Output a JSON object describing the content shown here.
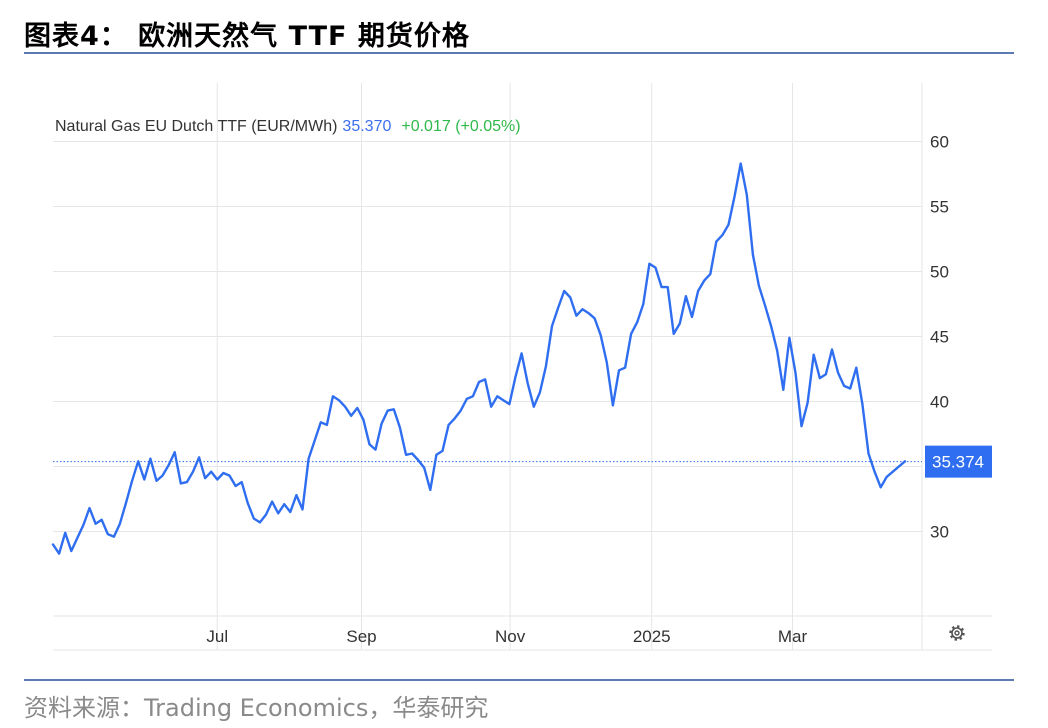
{
  "page": {
    "figure_title": "图表4： 欧洲天然气 TTF 期货价格",
    "source": "资料来源：Trading Economics，华泰研究"
  },
  "chart_header": {
    "instrument": "Natural Gas EU Dutch TTF (EUR/MWh)",
    "price": "35.370",
    "change": "+0.017 (+0.05%)"
  },
  "colors": {
    "line": "#2f6ef0",
    "price_text": "#3b6ff0",
    "change_text": "#2fb94a",
    "rule": "#5b7bb2",
    "grid": "#e6e6e6",
    "current_label_bg": "#2f6ef0"
  },
  "icons": {
    "settings": "gear-icon"
  },
  "chart_data": {
    "type": "line",
    "title": "Natural Gas EU Dutch TTF (EUR/MWh)",
    "xlabel": "",
    "ylabel": "",
    "ylim": [
      23.5,
      64.5
    ],
    "y_ticks": [
      30,
      35,
      40,
      45,
      50,
      55,
      60
    ],
    "x_ticks": [
      "Jul",
      "Sep",
      "Nov",
      "2025",
      "Mar"
    ],
    "grid": true,
    "current_value_label": "35.374",
    "current_value": 35.374,
    "series": [
      {
        "values": [
          29.0,
          28.3,
          29.9,
          28.5,
          29.5,
          30.5,
          31.8,
          30.6,
          30.9,
          29.8,
          29.6,
          30.6,
          32.2,
          33.9,
          35.4,
          34.0,
          35.6,
          33.9,
          34.3,
          35.1,
          36.1,
          33.7,
          33.8,
          34.6,
          35.7,
          34.1,
          34.6,
          34.0,
          34.5,
          34.3,
          33.5,
          33.8,
          32.2,
          31.0,
          30.7,
          31.3,
          32.3,
          31.4,
          32.1,
          31.5,
          32.8,
          31.7,
          35.6,
          37.0,
          38.4,
          38.2,
          40.4,
          40.1,
          39.6,
          38.9,
          39.5,
          38.6,
          36.7,
          36.3,
          38.3,
          39.3,
          39.4,
          38.0,
          35.9,
          36.0,
          35.5,
          34.9,
          33.2,
          35.9,
          36.2,
          38.2,
          38.7,
          39.3,
          40.2,
          40.4,
          41.5,
          41.7,
          39.6,
          40.4,
          40.1,
          39.8,
          41.9,
          43.7,
          41.4,
          39.6,
          40.7,
          42.7,
          45.8,
          47.2,
          48.5,
          48.0,
          46.6,
          47.1,
          46.8,
          46.4,
          45.1,
          43.0,
          39.7,
          42.4,
          42.6,
          45.2,
          46.1,
          47.5,
          50.6,
          50.3,
          48.8,
          48.8,
          45.2,
          46.0,
          48.1,
          46.5,
          48.5,
          49.3,
          49.8,
          52.3,
          52.8,
          53.6,
          55.8,
          58.3,
          55.9,
          51.3,
          48.9,
          47.4,
          45.8,
          43.9,
          40.9,
          44.9,
          42.2,
          38.1,
          39.9,
          43.6,
          41.8,
          42.1,
          44.0,
          42.2,
          41.2,
          41.0,
          42.6,
          39.8,
          36.0,
          34.6,
          33.4,
          34.2,
          34.6,
          35.0,
          35.4
        ]
      }
    ]
  }
}
